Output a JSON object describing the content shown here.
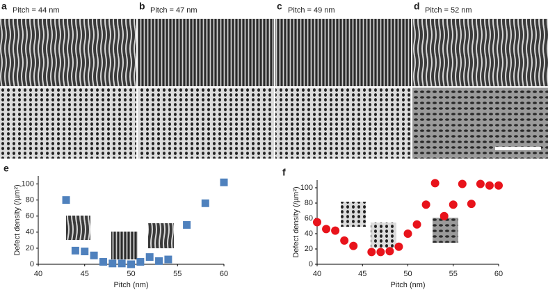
{
  "panels": [
    {
      "label": "a",
      "pitch": "Pitch = 44 nm"
    },
    {
      "label": "b",
      "pitch": "Pitch = 47 nm"
    },
    {
      "label": "c",
      "pitch": "Pitch = 49 nm"
    },
    {
      "label": "d",
      "pitch": "Pitch = 52 nm"
    }
  ],
  "chart_data": [
    {
      "type": "scatter",
      "label": "e",
      "xlabel": "Pitch (nm)",
      "ylabel": "Defect density (/µm²)",
      "xlim": [
        40,
        60
      ],
      "ylim": [
        0,
        110
      ],
      "xticks": [
        40,
        45,
        50,
        55,
        60
      ],
      "yticks": [
        0,
        20,
        40,
        60,
        80,
        100
      ],
      "marker": "square",
      "series": [
        {
          "color": "#4f81bd",
          "x": [
            43,
            44,
            45,
            46,
            47,
            48,
            49,
            50,
            51,
            52,
            53,
            54,
            56,
            58,
            60
          ],
          "values": [
            80,
            17,
            16,
            11,
            3,
            1,
            1,
            0,
            3,
            9,
            4,
            6,
            49,
            76,
            102
          ]
        }
      ]
    },
    {
      "type": "scatter",
      "label": "f",
      "xlabel": "Pitch (nm)",
      "ylabel": "Defect density (/µm²)",
      "xlim": [
        40,
        60
      ],
      "ylim": [
        0,
        110
      ],
      "xticks": [
        40,
        45,
        50,
        55,
        60
      ],
      "yticks": [
        0,
        20,
        40,
        60,
        80,
        100
      ],
      "marker": "circle",
      "series": [
        {
          "color": "#e8131b",
          "x": [
            40,
            41,
            42,
            43,
            44,
            46,
            47,
            48,
            49,
            50,
            51,
            52,
            53,
            54,
            55,
            56,
            57,
            58,
            59,
            60
          ],
          "values": [
            55,
            46,
            44,
            31,
            24,
            16,
            16,
            17,
            23,
            40,
            52,
            78,
            106,
            63,
            78,
            105,
            79,
            105,
            103,
            103
          ]
        }
      ]
    }
  ]
}
